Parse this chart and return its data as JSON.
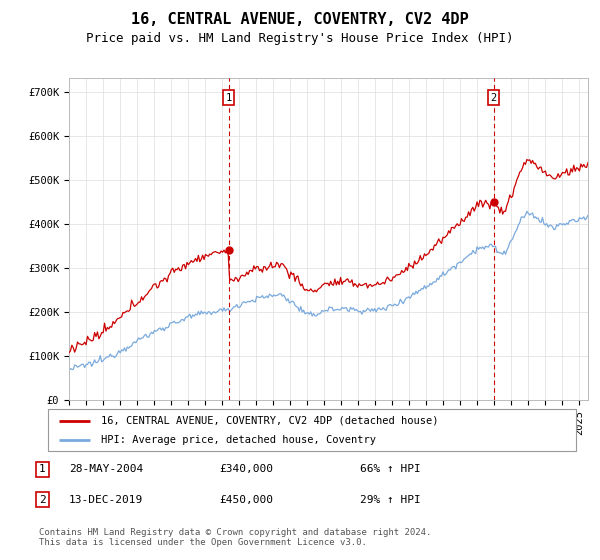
{
  "title": "16, CENTRAL AVENUE, COVENTRY, CV2 4DP",
  "subtitle": "Price paid vs. HM Land Registry's House Price Index (HPI)",
  "legend_line1": "16, CENTRAL AVENUE, COVENTRY, CV2 4DP (detached house)",
  "legend_line2": "HPI: Average price, detached house, Coventry",
  "point1_date": "28-MAY-2004",
  "point1_price_str": "£340,000",
  "point1_price": 340000,
  "point1_hpi_str": "66% ↑ HPI",
  "point1_year": 2004.38,
  "point2_date": "13-DEC-2019",
  "point2_price_str": "£450,000",
  "point2_price": 450000,
  "point2_hpi_str": "29% ↑ HPI",
  "point2_year": 2019.95,
  "footer": "Contains HM Land Registry data © Crown copyright and database right 2024.\nThis data is licensed under the Open Government Licence v3.0.",
  "hpi_color": "#7aaadd",
  "price_paid_color": "#cc0000",
  "vline_color": "#cc0000",
  "ylim_min": 0,
  "ylim_max": 730000,
  "yticks": [
    0,
    100000,
    200000,
    300000,
    400000,
    500000,
    600000,
    700000
  ],
  "ytick_labels": [
    "£0",
    "£100K",
    "£200K",
    "£300K",
    "£400K",
    "£500K",
    "£600K",
    "£700K"
  ],
  "xmin": 1995,
  "xmax": 2025.5,
  "background_color": "#ffffff",
  "grid_color": "#dddddd",
  "title_fontsize": 11,
  "subtitle_fontsize": 9,
  "tick_fontsize": 7.5,
  "label_fontsize": 8
}
